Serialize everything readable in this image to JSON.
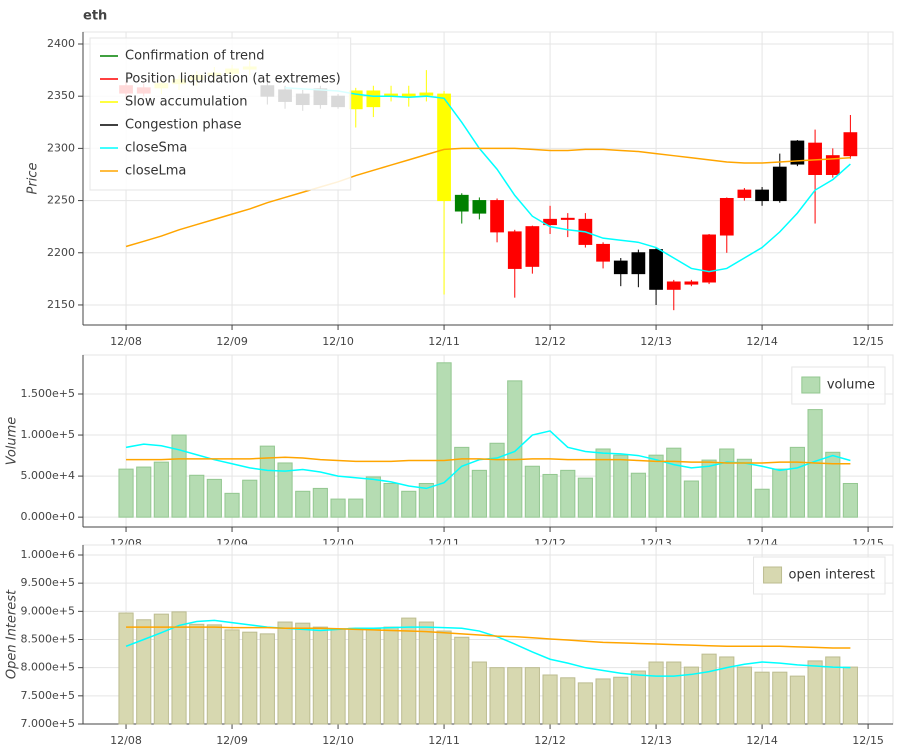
{
  "chart_data": [
    {
      "type": "candlestick",
      "title": "eth",
      "ylabel": "Price",
      "x": [
        0,
        0.167,
        0.333,
        0.5,
        0.667,
        0.833,
        1,
        1.167,
        1.333,
        1.5,
        1.667,
        1.833,
        2,
        2.167,
        2.333,
        2.5,
        2.667,
        2.833,
        3,
        3.167,
        3.333,
        3.5,
        3.667,
        3.833,
        4,
        4.167,
        4.333,
        4.5,
        4.667,
        4.833,
        5,
        5.167,
        5.333,
        5.5,
        5.667,
        5.833,
        6,
        6.167,
        6.333,
        6.5,
        6.667,
        6.833
      ],
      "open": [
        2360,
        2353,
        2358,
        2362,
        2366,
        2370,
        2372,
        2376,
        2360,
        2356,
        2352,
        2357,
        2350,
        2355,
        2355,
        2352,
        2352,
        2353,
        2352,
        2255,
        2250,
        2250,
        2220,
        2225,
        2232,
        2233,
        2232,
        2208,
        2192,
        2200,
        2203,
        2172,
        2172,
        2217,
        2252,
        2260,
        2260,
        2282,
        2307,
        2305,
        2293,
        2315
      ],
      "high": [
        2364,
        2362,
        2366,
        2370,
        2374,
        2378,
        2380,
        2384,
        2364,
        2360,
        2356,
        2360,
        2352,
        2358,
        2360,
        2360,
        2360,
        2375,
        2355,
        2257,
        2253,
        2252,
        2222,
        2226,
        2245,
        2238,
        2238,
        2210,
        2195,
        2203,
        2205,
        2174,
        2174,
        2218,
        2253,
        2262,
        2263,
        2295,
        2308,
        2318,
        2300,
        2332
      ],
      "low": [
        2348,
        2350,
        2352,
        2356,
        2360,
        2364,
        2366,
        2370,
        2342,
        2338,
        2336,
        2338,
        2338,
        2320,
        2330,
        2345,
        2340,
        2345,
        2160,
        2228,
        2232,
        2210,
        2157,
        2180,
        2218,
        2215,
        2205,
        2185,
        2168,
        2167,
        2150,
        2145,
        2168,
        2170,
        2200,
        2250,
        2245,
        2248,
        2283,
        2228,
        2272,
        2290
      ],
      "close": [
        2353,
        2358,
        2362,
        2366,
        2370,
        2372,
        2376,
        2378,
        2350,
        2345,
        2342,
        2342,
        2340,
        2338,
        2340,
        2350,
        2350,
        2351,
        2250,
        2240,
        2238,
        2220,
        2185,
        2187,
        2227,
        2232,
        2208,
        2192,
        2180,
        2180,
        2165,
        2165,
        2170,
        2172,
        2217,
        2253,
        2250,
        2250,
        2285,
        2275,
        2275,
        2293
      ],
      "colors": [
        "#ff0000",
        "#ff0000",
        "#ffff00",
        "#ffff00",
        "#ffff00",
        "#ffff00",
        "#ffff00",
        "#ffff00",
        "#000000",
        "#000000",
        "#000000",
        "#000000",
        "#000000",
        "#ffff00",
        "#ffff00",
        "#ffff00",
        "#ffff00",
        "#ffff00",
        "#ffff00",
        "#008000",
        "#008000",
        "#ff0000",
        "#ff0000",
        "#ff0000",
        "#ff0000",
        "#ff0000",
        "#ff0000",
        "#ff0000",
        "#000000",
        "#000000",
        "#000000",
        "#ff0000",
        "#ff0000",
        "#ff0000",
        "#ff0000",
        "#ff0000",
        "#000000",
        "#000000",
        "#000000",
        "#ff0000",
        "#ff0000",
        "#ff0000"
      ],
      "phases": [
        {
          "name": "Confirmation of trend",
          "color": "#008000"
        },
        {
          "name": "Position liquidation (at extremes)",
          "color": "#ff0000"
        },
        {
          "name": "Slow accumulation",
          "color": "#ffff00"
        },
        {
          "name": "Congestion phase",
          "color": "#000000"
        }
      ],
      "series": [
        {
          "name": "closeSma",
          "type": "line",
          "color": "cyan",
          "values": [
            null,
            null,
            null,
            null,
            null,
            null,
            null,
            null,
            null,
            2358,
            2357,
            2356,
            2355,
            2352,
            2350,
            2350,
            2349,
            2350,
            2348,
            2325,
            2300,
            2280,
            2255,
            2235,
            2225,
            2222,
            2220,
            2214,
            2212,
            2210,
            2205,
            2195,
            2185,
            2182,
            2185,
            2195,
            2205,
            2220,
            2238,
            2260,
            2270,
            2285
          ]
        },
        {
          "name": "closeLma",
          "type": "line",
          "color": "orange",
          "values": [
            2206,
            2211,
            2216,
            2222,
            2227,
            2232,
            2237,
            2242,
            2248,
            2253,
            2258,
            2263,
            2268,
            2274,
            2279,
            2284,
            2289,
            2294,
            2299,
            2300,
            2300,
            2300,
            2300,
            2299,
            2298,
            2298,
            2299,
            2299,
            2298,
            2297,
            2295,
            2293,
            2291,
            2289,
            2287,
            2286,
            2286,
            2287,
            2288,
            2289,
            2290,
            2291
          ]
        }
      ],
      "xlim": [
        -0.406,
        7.235
      ],
      "xticks": [
        {
          "value": 0,
          "label": "12/08"
        },
        {
          "value": 1,
          "label": "12/09"
        },
        {
          "value": 2,
          "label": "12/10"
        },
        {
          "value": 3,
          "label": "12/11"
        },
        {
          "value": 4,
          "label": "12/12"
        },
        {
          "value": 5,
          "label": "12/13"
        },
        {
          "value": 6,
          "label": "12/14"
        },
        {
          "value": 7,
          "label": "12/15"
        }
      ],
      "ylim": [
        2130.8,
        2411.5
      ],
      "yticks": [
        2150,
        2200,
        2250,
        2300,
        2350,
        2400
      ],
      "grid": true,
      "legend": "top_left"
    },
    {
      "type": "bar",
      "ylabel": "Volume",
      "x": [
        0,
        0.167,
        0.333,
        0.5,
        0.667,
        0.833,
        1,
        1.167,
        1.333,
        1.5,
        1.667,
        1.833,
        2,
        2.167,
        2.333,
        2.5,
        2.667,
        2.833,
        3,
        3.167,
        3.333,
        3.5,
        3.667,
        3.833,
        4,
        4.167,
        4.333,
        4.5,
        4.667,
        4.833,
        5,
        5.167,
        5.333,
        5.5,
        5.667,
        5.833,
        6,
        6.167,
        6.333,
        6.5,
        6.667,
        6.833
      ],
      "series": [
        {
          "name": "volume",
          "type": "bar",
          "color": "#b5dcb2",
          "edgecolor": "#93c790",
          "values": [
            58500,
            61000,
            67000,
            100000,
            51000,
            46000,
            29000,
            45000,
            86500,
            66000,
            31500,
            35000,
            22000,
            22000,
            49000,
            41000,
            31500,
            41000,
            188000,
            85000,
            57000,
            90000,
            166000,
            62000,
            52000,
            57000,
            47500,
            83000,
            75500,
            53500,
            75500,
            84000,
            44000,
            69500,
            83000,
            70500,
            34000,
            58500,
            85000,
            131000,
            79000,
            41000
          ]
        },
        {
          "type": "line",
          "color": "cyan",
          "values": [
            85000,
            89000,
            87000,
            82000,
            76000,
            70000,
            65000,
            60000,
            57000,
            56000,
            58000,
            55000,
            50000,
            48000,
            46000,
            43000,
            38000,
            35000,
            42000,
            62000,
            70000,
            72000,
            80000,
            100000,
            105000,
            85000,
            80000,
            78000,
            77000,
            75000,
            70000,
            64000,
            60000,
            62000,
            67000,
            66000,
            62000,
            57000,
            60000,
            68000,
            75000,
            69000
          ]
        },
        {
          "type": "line",
          "color": "orange",
          "values": [
            70000,
            70000,
            70000,
            71000,
            71000,
            71000,
            71000,
            71000,
            72000,
            73000,
            72000,
            70000,
            69000,
            68000,
            68000,
            68000,
            69000,
            69000,
            69000,
            71000,
            71000,
            70000,
            70000,
            71000,
            71000,
            70000,
            70000,
            70000,
            70000,
            69000,
            68000,
            68000,
            67000,
            67000,
            66000,
            66000,
            66000,
            67000,
            67000,
            66000,
            65000,
            65000
          ]
        }
      ],
      "xlim": [
        -0.406,
        7.235
      ],
      "xticks": [
        {
          "value": 0,
          "label": "12/08"
        },
        {
          "value": 1,
          "label": "12/09"
        },
        {
          "value": 2,
          "label": "12/10"
        },
        {
          "value": 3,
          "label": "12/11"
        },
        {
          "value": 4,
          "label": "12/12"
        },
        {
          "value": 5,
          "label": "12/13"
        },
        {
          "value": 6,
          "label": "12/14"
        },
        {
          "value": 7,
          "label": "12/15"
        }
      ],
      "ylim": [
        -12000,
        197500
      ],
      "yticks": [
        {
          "value": 0,
          "label": "0.000e+0"
        },
        {
          "value": 50000,
          "label": "5.000e+4"
        },
        {
          "value": 100000,
          "label": "1.000e+5"
        },
        {
          "value": 150000,
          "label": "1.500e+5"
        }
      ],
      "grid": true,
      "legend": "top_right"
    },
    {
      "type": "bar",
      "ylabel": "Open Interest",
      "x": [
        0,
        0.167,
        0.333,
        0.5,
        0.667,
        0.833,
        1,
        1.167,
        1.333,
        1.5,
        1.667,
        1.833,
        2,
        2.167,
        2.333,
        2.5,
        2.667,
        2.833,
        3,
        3.167,
        3.333,
        3.5,
        3.667,
        3.833,
        4,
        4.167,
        4.333,
        4.5,
        4.667,
        4.833,
        5,
        5.167,
        5.333,
        5.5,
        5.667,
        5.833,
        6,
        6.167,
        6.333,
        6.5,
        6.667,
        6.833
      ],
      "series": [
        {
          "name": "open interest",
          "type": "bar",
          "color": "#d7d8b0",
          "edgecolor": "#bcbc90",
          "values": [
            897000,
            885000,
            895000,
            899000,
            877000,
            876000,
            867000,
            863000,
            860000,
            881000,
            879000,
            872000,
            869000,
            870000,
            869000,
            872000,
            888000,
            881000,
            865000,
            854000,
            810000,
            800000,
            800000,
            800000,
            787000,
            782000,
            773000,
            780000,
            783000,
            794000,
            810000,
            810000,
            801000,
            824000,
            819000,
            801000,
            792000,
            792000,
            785000,
            812000,
            819000,
            801000
          ]
        },
        {
          "type": "line",
          "color": "cyan",
          "values": [
            838000,
            850000,
            862000,
            875000,
            882000,
            884000,
            880000,
            876000,
            872000,
            870000,
            868000,
            866000,
            868000,
            870000,
            870000,
            871000,
            872000,
            872000,
            871000,
            870000,
            865000,
            855000,
            842000,
            828000,
            815000,
            808000,
            800000,
            795000,
            790000,
            787000,
            785000,
            785000,
            788000,
            793000,
            800000,
            806000,
            810000,
            808000,
            805000,
            803000,
            801000,
            800000
          ]
        },
        {
          "type": "line",
          "color": "orange",
          "values": [
            872000,
            872000,
            872000,
            872000,
            872000,
            872000,
            871000,
            871000,
            871000,
            870000,
            870000,
            870000,
            869000,
            868000,
            867000,
            866000,
            865000,
            864000,
            862000,
            860000,
            858000,
            856000,
            855000,
            853000,
            851000,
            849000,
            847000,
            845000,
            844000,
            843000,
            842000,
            841000,
            840000,
            839000,
            838000,
            838000,
            838000,
            838000,
            837000,
            836000,
            835000,
            835000
          ]
        }
      ],
      "xlim": [
        -0.406,
        7.235
      ],
      "xticks": [
        {
          "value": 0,
          "label": "12/08"
        },
        {
          "value": 1,
          "label": "12/09"
        },
        {
          "value": 2,
          "label": "12/10"
        },
        {
          "value": 3,
          "label": "12/11"
        },
        {
          "value": 4,
          "label": "12/12"
        },
        {
          "value": 5,
          "label": "12/13"
        },
        {
          "value": 6,
          "label": "12/14"
        },
        {
          "value": 7,
          "label": "12/15"
        }
      ],
      "ylim": [
        700000,
        1017750
      ],
      "yticks": [
        {
          "value": 700000,
          "label": "7.000e+5"
        },
        {
          "value": 750000,
          "label": "7.500e+5"
        },
        {
          "value": 800000,
          "label": "8.000e+5"
        },
        {
          "value": 850000,
          "label": "8.500e+5"
        },
        {
          "value": 900000,
          "label": "9.000e+5"
        },
        {
          "value": 950000,
          "label": "9.500e+5"
        },
        {
          "value": 1000000,
          "label": "1.000e+6"
        }
      ],
      "grid": true,
      "legend": "top_right"
    }
  ]
}
